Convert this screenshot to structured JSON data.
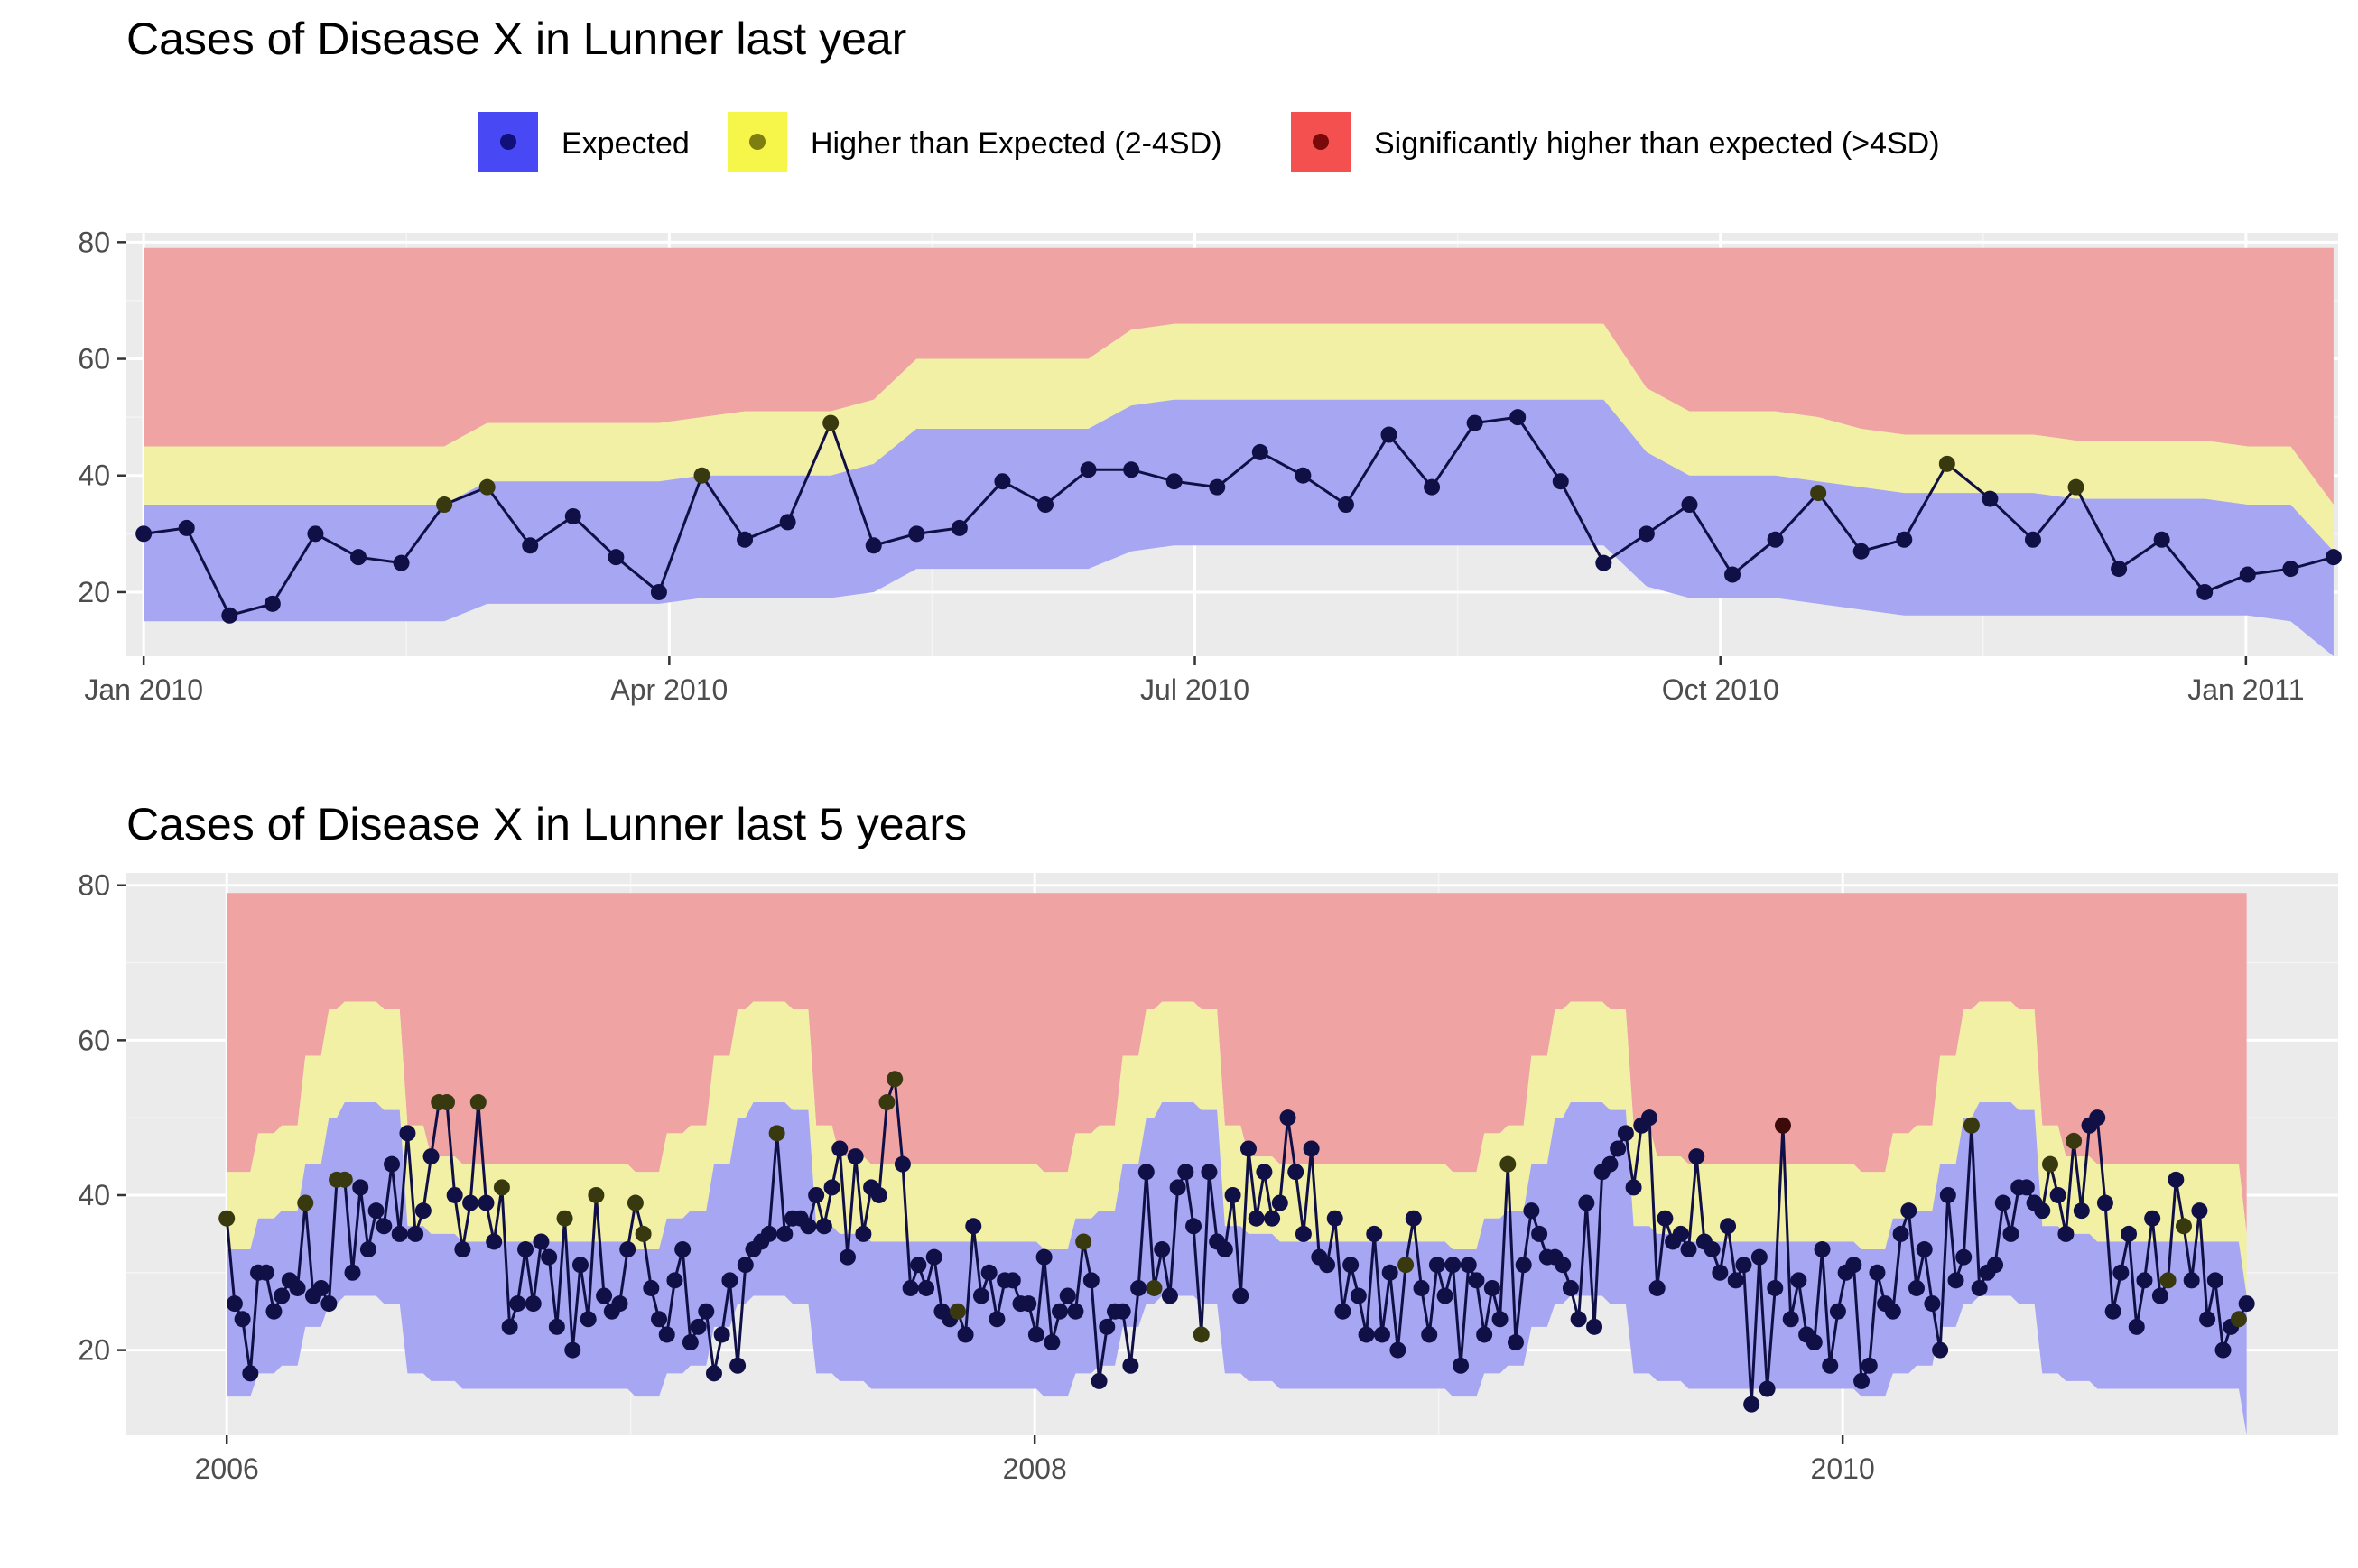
{
  "legend": {
    "items": [
      {
        "label": "Expected",
        "fill": "#4848F5",
        "point": "#10107A"
      },
      {
        "label": "Higher than Expected (2-4SD)",
        "fill": "#F6F64A",
        "point": "#7D7D10"
      },
      {
        "label": "Significantly higher than expected (>4SD)",
        "fill": "#F55050",
        "point": "#7A0A0A"
      }
    ]
  },
  "colors": {
    "panel": "#EBEBEB",
    "grid_major": "#FFFFFF",
    "grid_minor": "#F4F4F4",
    "band_expected": "#A6A6F2",
    "band_higher": "#F1F0A5",
    "band_significant": "#EFA3A3",
    "line": "#101046",
    "point_expected": "#101046",
    "point_higher": "#39390F",
    "point_significant": "#3D0A0A"
  },
  "chart_data": [
    {
      "type": "line",
      "title": "Cases of Disease X in Lunner last year",
      "xlabel": "",
      "ylabel": "",
      "x_ticks": [
        {
          "label": "Jan 2010",
          "t": 0
        },
        {
          "label": "Apr 2010",
          "t": 0.24
        },
        {
          "label": "Jul 2010",
          "t": 0.48
        },
        {
          "label": "Oct 2010",
          "t": 0.72
        },
        {
          "label": "Jan 2011",
          "t": 0.96
        }
      ],
      "ylim": [
        9,
        80
      ],
      "y_ticks": [
        20,
        40,
        60,
        80
      ],
      "t_range": [
        -0.0079,
        1.0021
      ],
      "x_start_label": "Jan 2010",
      "x_period_weeks": 52,
      "series": [
        {
          "values": [
            30,
            31,
            16,
            18,
            30,
            26,
            25,
            35,
            38,
            28,
            33,
            26,
            20,
            40,
            29,
            32,
            49,
            28,
            30,
            31,
            39,
            35,
            41,
            41,
            39,
            38,
            44,
            40,
            35,
            47,
            38,
            49,
            50,
            39,
            25,
            30,
            35,
            23,
            29,
            37,
            27,
            29,
            42,
            36,
            29,
            38,
            24,
            29,
            20,
            23,
            24,
            26
          ],
          "status": [
            "e",
            "e",
            "e",
            "e",
            "e",
            "e",
            "e",
            "h",
            "h",
            "e",
            "e",
            "e",
            "e",
            "h",
            "e",
            "e",
            "h",
            "e",
            "e",
            "e",
            "e",
            "e",
            "e",
            "e",
            "e",
            "e",
            "e",
            "e",
            "e",
            "e",
            "e",
            "e",
            "e",
            "e",
            "e",
            "e",
            "e",
            "e",
            "e",
            "h",
            "e",
            "e",
            "h",
            "e",
            "e",
            "h",
            "e",
            "e",
            "e",
            "e",
            "e",
            "e"
          ]
        }
      ],
      "bands": {
        "low": [
          15,
          15,
          15,
          15,
          15,
          15,
          15,
          15,
          18,
          18,
          18,
          18,
          18,
          19,
          19,
          19,
          19,
          20,
          24,
          24,
          24,
          24,
          24,
          27,
          28,
          28,
          28,
          28,
          28,
          28,
          28,
          28,
          28,
          28,
          28,
          21,
          19,
          19,
          19,
          18,
          17,
          16,
          16,
          16,
          16,
          16,
          16,
          16,
          16,
          16,
          15,
          9
        ],
        "expected_upper": [
          35,
          35,
          35,
          35,
          35,
          35,
          35,
          35,
          39,
          39,
          39,
          39,
          39,
          40,
          40,
          40,
          40,
          42,
          48,
          48,
          48,
          48,
          48,
          52,
          53,
          53,
          53,
          53,
          53,
          53,
          53,
          53,
          53,
          53,
          53,
          44,
          40,
          40,
          40,
          39,
          38,
          37,
          37,
          37,
          37,
          36,
          36,
          36,
          36,
          35,
          35,
          27
        ],
        "higher_upper": [
          45,
          45,
          45,
          45,
          45,
          45,
          45,
          45,
          49,
          49,
          49,
          49,
          49,
          50,
          51,
          51,
          51,
          53,
          60,
          60,
          60,
          60,
          60,
          65,
          66,
          66,
          66,
          66,
          66,
          66,
          66,
          66,
          66,
          66,
          66,
          55,
          51,
          51,
          51,
          50,
          48,
          47,
          47,
          47,
          47,
          46,
          46,
          46,
          46,
          45,
          45,
          35
        ],
        "top": 79
      }
    },
    {
      "type": "line",
      "title": "Cases of Disease X in Lunner last 5 years",
      "xlabel": "",
      "ylabel": "",
      "x_ticks": [
        {
          "label": "2006",
          "t": 0
        },
        {
          "label": "2008",
          "t": 0.4
        },
        {
          "label": "2010",
          "t": 0.8
        }
      ],
      "ylim": [
        9,
        80
      ],
      "y_ticks": [
        20,
        40,
        60,
        80
      ],
      "t_range": [
        -0.0497,
        1.0453
      ],
      "x_start_label": "2006",
      "x_period_weeks": 52,
      "series": [
        {
          "values": [
            37,
            26,
            24,
            17,
            30,
            30,
            25,
            27,
            29,
            28,
            39,
            27,
            28,
            26,
            42,
            42,
            30,
            41,
            33,
            38,
            36,
            44,
            35,
            48,
            35,
            38,
            45,
            52,
            52,
            40,
            33,
            39,
            52,
            39,
            34,
            41,
            23,
            26,
            33,
            26,
            34,
            32,
            23,
            37,
            20,
            31,
            24,
            40,
            27,
            25,
            26,
            33,
            39,
            35,
            28,
            24,
            22,
            29,
            33,
            21,
            23,
            25,
            17,
            22,
            29,
            18,
            31,
            33,
            34,
            35,
            48,
            35,
            37,
            37,
            36,
            40,
            36,
            41,
            46,
            32,
            45,
            35,
            41,
            40,
            52,
            55,
            44,
            28,
            31,
            28,
            32,
            25,
            24,
            25,
            22,
            36,
            27,
            30,
            24,
            29,
            29,
            26,
            26,
            22,
            32,
            21,
            25,
            27,
            25,
            34,
            29,
            16,
            23,
            25,
            25,
            18,
            28,
            43,
            28,
            33,
            27,
            41,
            43,
            36,
            22,
            43,
            34,
            33,
            40,
            27,
            46,
            37,
            43,
            37,
            39,
            50,
            43,
            35,
            46,
            32,
            31,
            37,
            25,
            31,
            27,
            22,
            35,
            22,
            30,
            20,
            31,
            37,
            28,
            22,
            31,
            27,
            31,
            18,
            31,
            29,
            22,
            28,
            24,
            44,
            21,
            31,
            38,
            35,
            32,
            32,
            31,
            28,
            24,
            39,
            23,
            43,
            44,
            46,
            48,
            41,
            49,
            50,
            28,
            37,
            34,
            35,
            33,
            45,
            34,
            33,
            30,
            36,
            29,
            31,
            13,
            32,
            15,
            28,
            49,
            24,
            29,
            22,
            21,
            33,
            18,
            25,
            30,
            31,
            16,
            18,
            30,
            26,
            25,
            35,
            38,
            28,
            33,
            26,
            20,
            40,
            29,
            32,
            49,
            28,
            30,
            31,
            39,
            35,
            41,
            41,
            39,
            38,
            44,
            40,
            35,
            47,
            38,
            49,
            50,
            39,
            25,
            30,
            35,
            23,
            29,
            37,
            27,
            29,
            42,
            36,
            29,
            38,
            24,
            29,
            20,
            23,
            24,
            26
          ],
          "highlight_higher": [
            0,
            10,
            14,
            15,
            27,
            28,
            32,
            35,
            43,
            47,
            52,
            53,
            70,
            84,
            85,
            93,
            109,
            118,
            124,
            150,
            163,
            222,
            232,
            235,
            247,
            249,
            256,
            259
          ],
          "highlight_significant": [
            198
          ]
        }
      ],
      "bands_seasonal": {
        "week_low": [
          14,
          14,
          14,
          14,
          17,
          17,
          17,
          18,
          18,
          18,
          23,
          23,
          23,
          26,
          26,
          27,
          27,
          27,
          27,
          27,
          26,
          26,
          26,
          17,
          17,
          17,
          16,
          16,
          16,
          16,
          15,
          15,
          15,
          15,
          15,
          15,
          15,
          15,
          15,
          15,
          15,
          15,
          15,
          15,
          15,
          15,
          15,
          15,
          15,
          15,
          15,
          15
        ],
        "week_exp": [
          33,
          33,
          33,
          33,
          37,
          37,
          37,
          38,
          38,
          38,
          44,
          44,
          44,
          50,
          50,
          52,
          52,
          52,
          52,
          52,
          51,
          51,
          51,
          36,
          36,
          36,
          35,
          35,
          35,
          35,
          34,
          34,
          34,
          34,
          34,
          34,
          34,
          34,
          34,
          34,
          34,
          34,
          34,
          34,
          34,
          34,
          34,
          34,
          34,
          34,
          34,
          34
        ],
        "week_high": [
          43,
          43,
          43,
          43,
          48,
          48,
          48,
          49,
          49,
          49,
          58,
          58,
          58,
          64,
          64,
          65,
          65,
          65,
          65,
          65,
          64,
          64,
          64,
          49,
          49,
          49,
          45,
          45,
          45,
          45,
          44,
          44,
          44,
          44,
          44,
          44,
          44,
          44,
          44,
          44,
          44,
          44,
          44,
          44,
          44,
          44,
          44,
          44,
          44,
          44,
          44,
          44
        ],
        "top": 79
      }
    }
  ]
}
